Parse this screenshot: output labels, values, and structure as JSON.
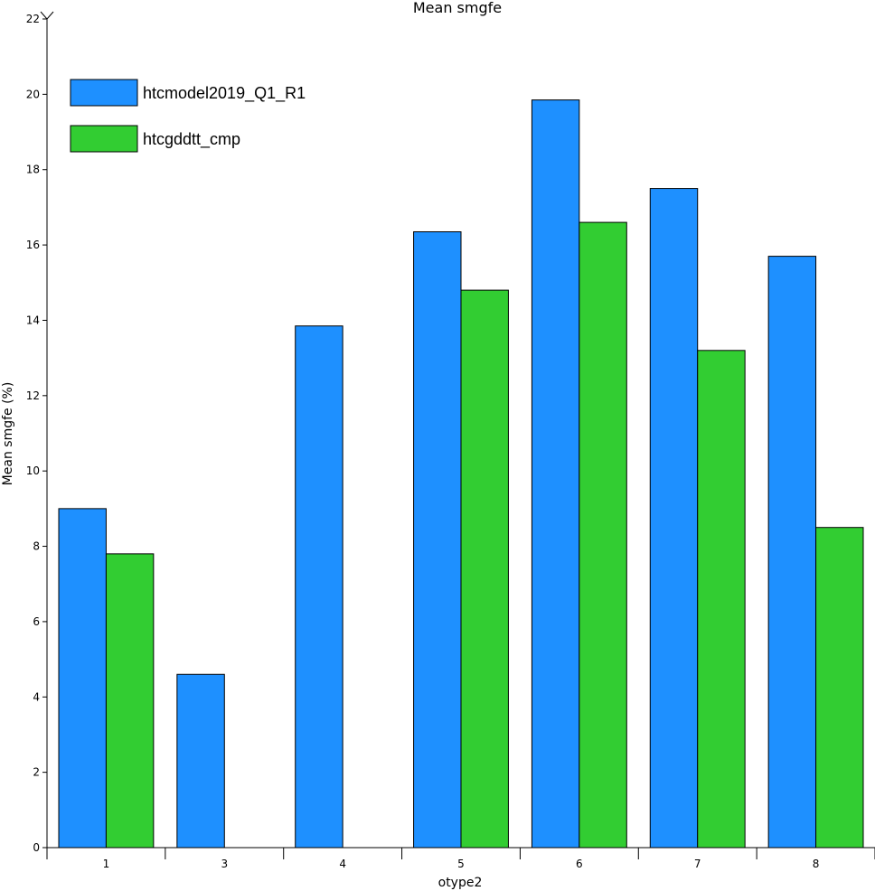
{
  "chart_data": {
    "type": "bar",
    "title": "Mean smgfe",
    "xlabel": "otype2",
    "ylabel": "Mean smgfe (%)",
    "ylim": [
      0,
      22
    ],
    "yticks": [
      0,
      2,
      4,
      6,
      8,
      10,
      12,
      14,
      16,
      18,
      20,
      22
    ],
    "categories": [
      "1",
      "3",
      "4",
      "5",
      "6",
      "7",
      "8"
    ],
    "series": [
      {
        "name": "htcmodel2019_Q1_R1",
        "color": "#1e90ff",
        "values": [
          9.0,
          4.6,
          13.85,
          16.35,
          19.85,
          17.5,
          15.7
        ]
      },
      {
        "name": "htcgddtt_cmp",
        "color": "#32cd32",
        "values": [
          7.8,
          null,
          null,
          14.8,
          16.6,
          13.2,
          8.5
        ]
      }
    ],
    "legend_position": "top-left",
    "grid": false
  }
}
